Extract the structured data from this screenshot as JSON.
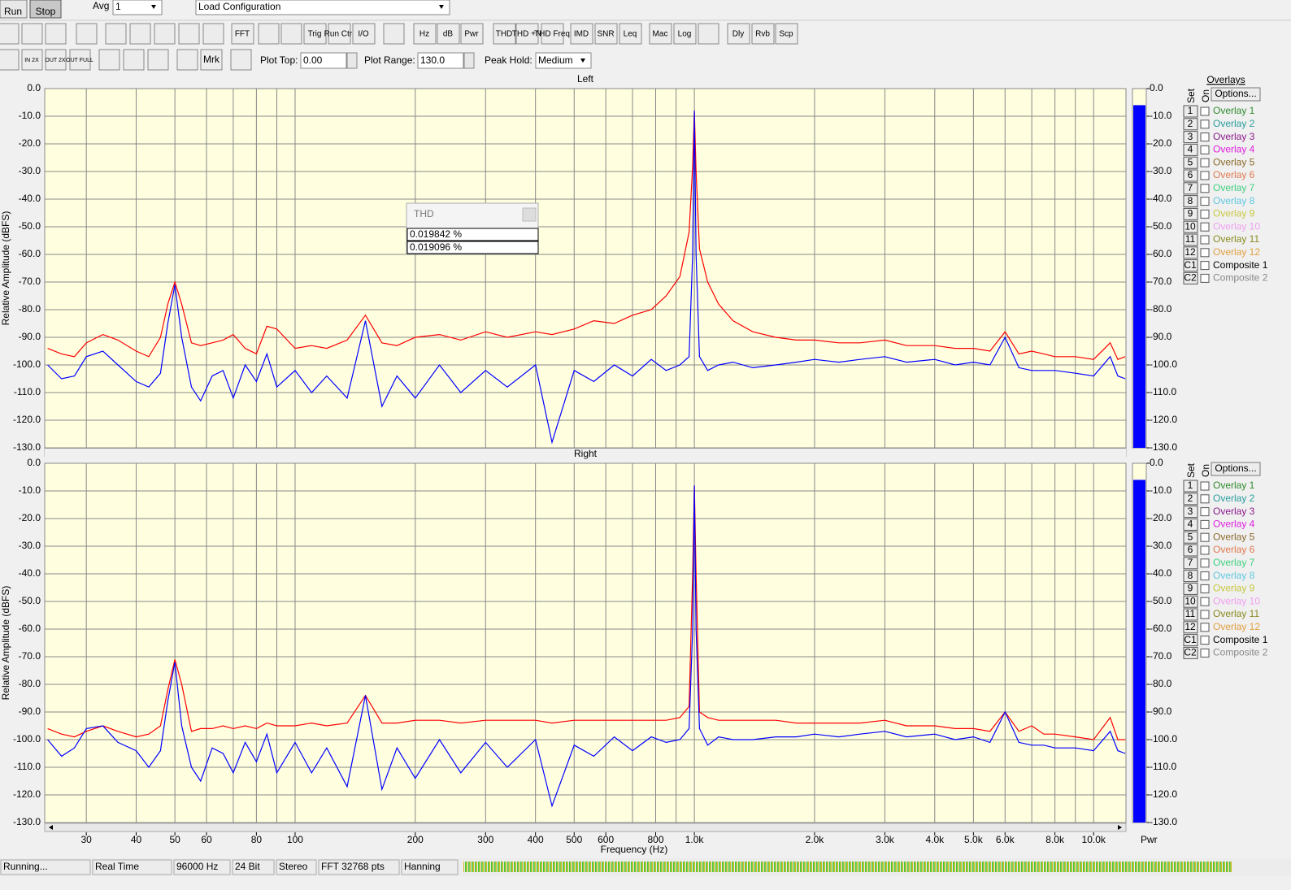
{
  "toolbar": {
    "run": "Run",
    "stop": "Stop",
    "avg_label": "Avg",
    "avg_value": "1",
    "config": "Load Configuration",
    "buttons": [
      "FFT",
      "Trig",
      "Run Ctrl",
      "I/O",
      "Hz",
      "dB",
      "Pwr",
      "THD",
      "THD +N",
      "THD Freq",
      "IMD",
      "SNR",
      "Leq",
      "Mac",
      "Log",
      "Dly",
      "Rvb",
      "Scp"
    ],
    "zoom_buttons": [
      "IN 2X",
      "OUT 2X",
      "OUT FULL"
    ],
    "marker": "Mrk",
    "plot_top_label": "Plot Top:",
    "plot_top": "0.00",
    "plot_range_label": "Plot Range:",
    "plot_range": "130.0",
    "peak_hold_label": "Peak Hold:",
    "peak_hold": "Medium"
  },
  "chart_data": [
    {
      "type": "line",
      "title": "Left",
      "ylabel": "Relative Amplitude (dBFS)",
      "xscale": "log",
      "grid": true,
      "xlim": [
        23.6,
        12050
      ],
      "ylim": [
        -130,
        0
      ],
      "xgrid": [
        30,
        40,
        50,
        60,
        70,
        80,
        90,
        100,
        200,
        300,
        400,
        500,
        600,
        700,
        800,
        900,
        1000,
        2000,
        3000,
        4000,
        5000,
        6000,
        7000,
        8000,
        9000,
        10000
      ],
      "yticks": [
        {
          "value": 0,
          "label": "0.0"
        },
        {
          "value": -10,
          "label": "-10.0"
        },
        {
          "value": -20,
          "label": "-20.0"
        },
        {
          "value": -30,
          "label": "-30.0"
        },
        {
          "value": -40,
          "label": "-40.0"
        },
        {
          "value": -50,
          "label": "-50.0"
        },
        {
          "value": -60,
          "label": "-60.0"
        },
        {
          "value": -70,
          "label": "-70.0"
        },
        {
          "value": -80,
          "label": "-80.0"
        },
        {
          "value": -90,
          "label": "-90.0"
        },
        {
          "value": -100,
          "label": "-100.0"
        },
        {
          "value": -110,
          "label": "-110.0"
        },
        {
          "value": -120,
          "label": "-120.0"
        },
        {
          "value": -130,
          "label": "-130.0"
        }
      ],
      "x": [
        24,
        26,
        28,
        30,
        33,
        36,
        40,
        43,
        46,
        48,
        50,
        52,
        55,
        58,
        62,
        66,
        70,
        75,
        80,
        85,
        90,
        100,
        110,
        120,
        135,
        150,
        165,
        180,
        200,
        230,
        260,
        300,
        340,
        400,
        440,
        500,
        560,
        630,
        700,
        780,
        850,
        920,
        970,
        990,
        1000,
        1010,
        1030,
        1080,
        1150,
        1250,
        1400,
        1600,
        1800,
        2000,
        2300,
        2600,
        3000,
        3400,
        4000,
        4500,
        5000,
        5500,
        6000,
        6500,
        7000,
        7500,
        8000,
        9000,
        10000,
        11000,
        11500,
        12000
      ],
      "series": [
        {
          "color": "#ff0000",
          "values": [
            -94,
            -96,
            -97,
            -92,
            -89,
            -91,
            -95,
            -97,
            -90,
            -78,
            -70,
            -78,
            -92,
            -93,
            -92,
            -91,
            -89,
            -94,
            -96,
            -86,
            -87,
            -94,
            -93,
            -94,
            -91,
            -82,
            -92,
            -93,
            -90,
            -89,
            -91,
            -88,
            -90,
            -88,
            -89,
            -87,
            -84,
            -85,
            -82,
            -80,
            -75,
            -68,
            -52,
            -28,
            -8,
            -30,
            -58,
            -70,
            -78,
            -84,
            -88,
            -90,
            -91,
            -91,
            -92,
            -92,
            -91,
            -93,
            -93,
            -94,
            -94,
            -95,
            -88,
            -96,
            -95,
            -96,
            -97,
            -97,
            -98,
            -92,
            -98,
            -97
          ]
        },
        {
          "color": "#0000ff",
          "values": [
            -100,
            -105,
            -104,
            -97,
            -95,
            -100,
            -106,
            -108,
            -103,
            -85,
            -71,
            -90,
            -108,
            -113,
            -104,
            -102,
            -112,
            -100,
            -106,
            -96,
            -108,
            -102,
            -110,
            -104,
            -112,
            -84,
            -115,
            -104,
            -112,
            -100,
            -110,
            -102,
            -108,
            -100,
            -128,
            -102,
            -106,
            -100,
            -104,
            -98,
            -102,
            -100,
            -97,
            -60,
            -8,
            -60,
            -97,
            -102,
            -100,
            -99,
            -101,
            -100,
            -99,
            -98,
            -99,
            -98,
            -97,
            -99,
            -98,
            -100,
            -99,
            -100,
            -90,
            -101,
            -102,
            -102,
            -102,
            -103,
            -104,
            -97,
            -104,
            -105
          ]
        }
      ],
      "meter_value": -6
    },
    {
      "type": "line",
      "title": "Right",
      "ylabel": "Relative Amplitude (dBFS)",
      "xlabel": "Frequency (Hz)",
      "xscale": "log",
      "grid": true,
      "xlim": [
        23.6,
        12050
      ],
      "ylim": [
        -130,
        0
      ],
      "xgrid": [
        30,
        40,
        50,
        60,
        70,
        80,
        90,
        100,
        200,
        300,
        400,
        500,
        600,
        700,
        800,
        900,
        1000,
        2000,
        3000,
        4000,
        5000,
        6000,
        7000,
        8000,
        9000,
        10000
      ],
      "xticks": [
        30,
        40,
        50,
        60,
        80,
        100,
        200,
        300,
        400,
        500,
        600,
        800,
        {
          "value": 1000,
          "label": "1.0k"
        },
        {
          "value": 2000,
          "label": "2.0k"
        },
        {
          "value": 3000,
          "label": "3.0k"
        },
        {
          "value": 4000,
          "label": "4.0k"
        },
        {
          "value": 5000,
          "label": "5.0k"
        },
        {
          "value": 6000,
          "label": "6.0k"
        },
        {
          "value": 8000,
          "label": "8.0k"
        },
        {
          "value": 10000,
          "label": "10.0k"
        }
      ],
      "yticks": [
        {
          "value": 0,
          "label": "0.0"
        },
        {
          "value": -10,
          "label": "-10.0"
        },
        {
          "value": -20,
          "label": "-20.0"
        },
        {
          "value": -30,
          "label": "-30.0"
        },
        {
          "value": -40,
          "label": "-40.0"
        },
        {
          "value": -50,
          "label": "-50.0"
        },
        {
          "value": -60,
          "label": "-60.0"
        },
        {
          "value": -70,
          "label": "-70.0"
        },
        {
          "value": -80,
          "label": "-80.0"
        },
        {
          "value": -90,
          "label": "-90.0"
        },
        {
          "value": -100,
          "label": "-100.0"
        },
        {
          "value": -110,
          "label": "-110.0"
        },
        {
          "value": -120,
          "label": "-120.0"
        },
        {
          "value": -130,
          "label": "-130.0"
        }
      ],
      "x": [
        24,
        26,
        28,
        30,
        33,
        36,
        40,
        43,
        46,
        48,
        50,
        52,
        55,
        58,
        62,
        66,
        70,
        75,
        80,
        85,
        90,
        100,
        110,
        120,
        135,
        150,
        165,
        180,
        200,
        230,
        260,
        300,
        340,
        400,
        440,
        500,
        560,
        630,
        700,
        780,
        850,
        920,
        970,
        990,
        1000,
        1010,
        1030,
        1080,
        1150,
        1250,
        1400,
        1600,
        1800,
        2000,
        2300,
        2600,
        3000,
        3400,
        4000,
        4500,
        5000,
        5500,
        6000,
        6500,
        7000,
        7500,
        8000,
        9000,
        10000,
        11000,
        11500,
        12000
      ],
      "series": [
        {
          "color": "#ff0000",
          "values": [
            -96,
            -98,
            -99,
            -97,
            -95,
            -97,
            -99,
            -98,
            -95,
            -82,
            -71,
            -80,
            -97,
            -96,
            -96,
            -95,
            -96,
            -95,
            -96,
            -94,
            -95,
            -95,
            -94,
            -95,
            -94,
            -84,
            -94,
            -94,
            -93,
            -93,
            -94,
            -93,
            -93,
            -93,
            -94,
            -93,
            -93,
            -93,
            -93,
            -93,
            -93,
            -92,
            -88,
            -40,
            -8,
            -40,
            -90,
            -92,
            -93,
            -93,
            -93,
            -93,
            -94,
            -94,
            -94,
            -94,
            -93,
            -95,
            -95,
            -96,
            -96,
            -97,
            -90,
            -97,
            -95,
            -98,
            -98,
            -99,
            -100,
            -92,
            -100,
            -100
          ]
        },
        {
          "color": "#0000ff",
          "values": [
            -100,
            -106,
            -103,
            -96,
            -95,
            -101,
            -104,
            -110,
            -104,
            -86,
            -72,
            -95,
            -110,
            -115,
            -103,
            -105,
            -112,
            -101,
            -108,
            -98,
            -112,
            -101,
            -112,
            -103,
            -117,
            -84,
            -118,
            -103,
            -114,
            -100,
            -112,
            -101,
            -110,
            -100,
            -124,
            -102,
            -106,
            -99,
            -104,
            -99,
            -101,
            -100,
            -96,
            -60,
            -8,
            -60,
            -96,
            -102,
            -99,
            -100,
            -100,
            -99,
            -99,
            -98,
            -99,
            -98,
            -97,
            -99,
            -98,
            -100,
            -99,
            -101,
            -90,
            -101,
            -102,
            -102,
            -103,
            -103,
            -104,
            -97,
            -104,
            -105
          ]
        }
      ],
      "meter_value": -6
    }
  ],
  "meter_label": "Pwr",
  "thd_popup": {
    "title": "THD",
    "values": [
      "0.019842 %",
      "0.019096 %"
    ]
  },
  "overlays": {
    "title": "Overlays",
    "set": "Set",
    "on": "On",
    "options": "Options...",
    "rows": [
      {
        "set": "1",
        "label": "Overlay 1",
        "color": "#2e8b2e"
      },
      {
        "set": "2",
        "label": "Overlay 2",
        "color": "#2a9d9d"
      },
      {
        "set": "3",
        "label": "Overlay 3",
        "color": "#8b1a8b"
      },
      {
        "set": "4",
        "label": "Overlay 4",
        "color": "#e020e0"
      },
      {
        "set": "5",
        "label": "Overlay 5",
        "color": "#8b6a2a"
      },
      {
        "set": "6",
        "label": "Overlay 6",
        "color": "#e07a50"
      },
      {
        "set": "7",
        "label": "Overlay 7",
        "color": "#40d080"
      },
      {
        "set": "8",
        "label": "Overlay 8",
        "color": "#60c8e0"
      },
      {
        "set": "9",
        "label": "Overlay 9",
        "color": "#c8c840"
      },
      {
        "set": "10",
        "label": "Overlay 10",
        "color": "#f0a0f0"
      },
      {
        "set": "11",
        "label": "Overlay 11",
        "color": "#8a8a20"
      },
      {
        "set": "12",
        "label": "Overlay 12",
        "color": "#e0a040"
      },
      {
        "set": "C1",
        "label": "Composite 1",
        "color": "#000000"
      },
      {
        "set": "C2",
        "label": "Composite 2",
        "color": "#888888"
      }
    ]
  },
  "status": [
    "Running...",
    "Real Time",
    "96000 Hz",
    "24 Bit",
    "Stereo",
    "FFT 32768 pts",
    "Hanning"
  ]
}
